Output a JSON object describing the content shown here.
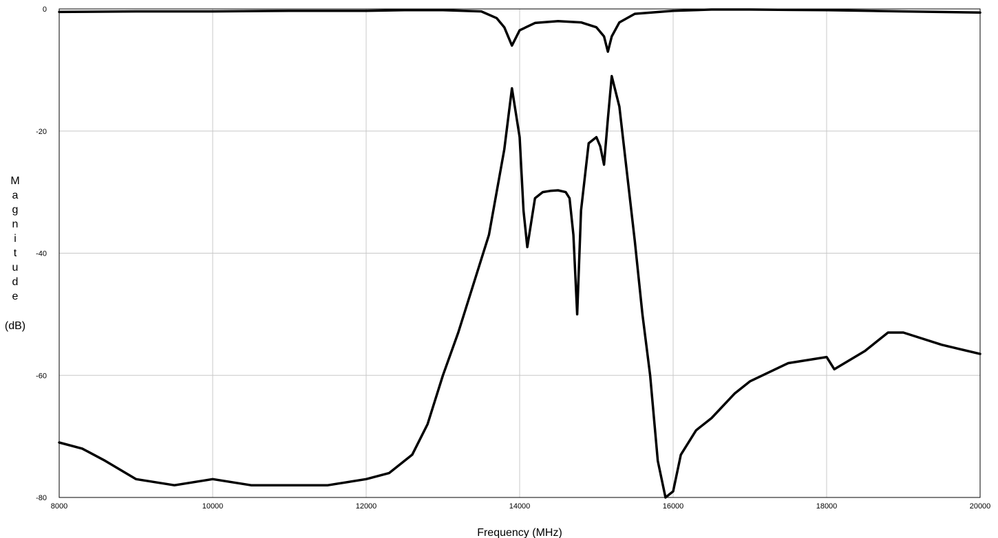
{
  "chart_data": {
    "type": "line",
    "title": "",
    "xlabel": "Frequency (MHz)",
    "ylabel_letters": [
      "M",
      "a",
      "g",
      "n",
      "i",
      "t",
      "u",
      "d",
      "e"
    ],
    "ylabel_unit": "(dB)",
    "xlim": [
      8000,
      20000
    ],
    "ylim": [
      -80,
      0
    ],
    "x_ticks": [
      8000,
      10000,
      12000,
      14000,
      16000,
      18000,
      20000
    ],
    "y_ticks": [
      0,
      -20,
      -40,
      -60,
      -80
    ],
    "grid": true,
    "line_color": "#000000",
    "grid_color": "#c8c8c8",
    "series": [
      {
        "x": [
          8000,
          9000,
          10000,
          11000,
          12000,
          12500,
          13000,
          13500,
          13700,
          13800,
          13900,
          14000,
          14200,
          14500,
          14800,
          15000,
          15100,
          15150,
          15200,
          15300,
          15500,
          16000,
          16500,
          17000,
          18000,
          19000,
          20000
        ],
        "y": [
          -0.5,
          -0.4,
          -0.4,
          -0.3,
          -0.3,
          -0.2,
          -0.2,
          -0.4,
          -1.5,
          -3.0,
          -6.0,
          -3.5,
          -2.3,
          -2.0,
          -2.2,
          -3.0,
          -4.5,
          -7.0,
          -4.5,
          -2.2,
          -0.8,
          -0.3,
          -0.1,
          -0.1,
          -0.2,
          -0.4,
          -0.6
        ]
      },
      {
        "x": [
          8000,
          8300,
          8600,
          9000,
          9500,
          10000,
          10500,
          11000,
          11500,
          12000,
          12300,
          12600,
          12800,
          13000,
          13200,
          13400,
          13600,
          13800,
          13900,
          14000,
          14050,
          14100,
          14200,
          14300,
          14400,
          14500,
          14600,
          14650,
          14700,
          14750,
          14800,
          14900,
          15000,
          15050,
          15100,
          15150,
          15200,
          15300,
          15400,
          15500,
          15600,
          15700,
          15800,
          15900,
          16000,
          16100,
          16300,
          16500,
          16800,
          17000,
          17500,
          18000,
          18100,
          18500,
          18800,
          19000,
          19500,
          20000
        ],
        "y": [
          -71,
          -72,
          -74,
          -77,
          -78,
          -77,
          -78,
          -78,
          -78,
          -77,
          -76,
          -73,
          -68,
          -60,
          -53,
          -45,
          -37,
          -23,
          -13,
          -21,
          -33,
          -39,
          -31,
          -30,
          -29.8,
          -29.7,
          -30,
          -31,
          -37,
          -50,
          -33,
          -22,
          -21,
          -22.5,
          -25.5,
          -18,
          -11,
          -16,
          -27,
          -38,
          -50,
          -60,
          -74,
          -80,
          -79,
          -73,
          -69,
          -67,
          -63,
          -61,
          -58,
          -57,
          -59,
          -56,
          -53,
          -53,
          -55,
          -56.5
        ]
      }
    ]
  }
}
